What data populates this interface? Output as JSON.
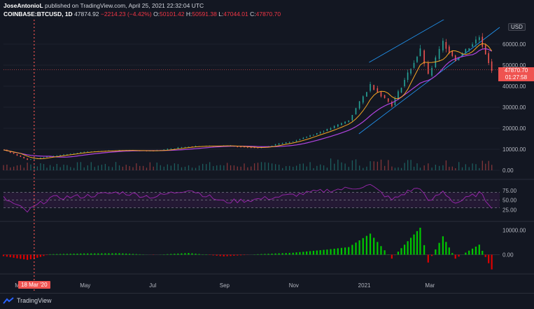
{
  "header": {
    "author": "JoseAntonioL",
    "published": "published on TradingView.com, April 25, 2021 22:32:04 UTC",
    "symbol": "COINBASE:BTCUSD, 1D",
    "last": "47874.92",
    "change": "−2214.23 (−4.42%)",
    "o_label": "O:",
    "o_val": "50101.42",
    "h_label": "H:",
    "h_val": "50591.38",
    "l_label": "L:",
    "l_val": "47044.01",
    "c_label": "C:",
    "c_val": "47870.70"
  },
  "currency": "USD",
  "price_tag": {
    "price": "47870.70",
    "countdown": "01:27:58"
  },
  "date_tag": "18 Mar '20",
  "footer": {
    "brand": "TradingView"
  },
  "colors": {
    "bg": "#131722",
    "up": "#26a69a",
    "down": "#ef5350",
    "ma_fast": "#f5a623",
    "ma_slow": "#b044e0",
    "rsi": "#9c27b0",
    "channel": "#2196f3",
    "hist_up": "#00c800",
    "hist_down": "#e00000"
  },
  "chart_data": {
    "type": "line",
    "x": [
      "2020-02-20",
      "2020-03-12",
      "2020-03-18",
      "2020-04-01",
      "2020-05-01",
      "2020-06-01",
      "2020-07-01",
      "2020-08-01",
      "2020-09-01",
      "2020-10-01",
      "2020-11-01",
      "2020-12-01",
      "2020-12-20",
      "2021-01-08",
      "2021-01-27",
      "2021-02-10",
      "2021-02-21",
      "2021-02-28",
      "2021-03-13",
      "2021-03-24",
      "2021-04-14",
      "2021-04-25"
    ],
    "series": [
      {
        "values": [
          9700,
          5000,
          5400,
          6600,
          8800,
          9500,
          9200,
          11300,
          11700,
          10600,
          13800,
          19300,
          23800,
          40600,
          31000,
          46000,
          57000,
          45000,
          61000,
          52500,
          63500,
          47870
        ]
      }
    ],
    "price_axis": {
      "ticks": [
        "60000.00",
        "50000.00",
        "40000.00",
        "30000.00",
        "20000.00",
        "10000.00",
        "0.00"
      ],
      "ylim": [
        0,
        70000
      ]
    },
    "rsi": {
      "ticks": [
        "75.00",
        "50.00",
        "25.00"
      ],
      "ylim": [
        0,
        100
      ],
      "values": [
        55,
        20,
        32,
        55,
        60,
        70,
        58,
        78,
        45,
        52,
        63,
        75,
        80,
        88,
        50,
        72,
        83,
        44,
        72,
        42,
        68,
        34
      ]
    },
    "histogram": {
      "ticks": [
        "10000.00",
        "0.00"
      ],
      "ylim": [
        -7000,
        13000
      ],
      "values": [
        -600,
        -2100,
        -1600,
        200,
        500,
        600,
        -100,
        700,
        -700,
        200,
        800,
        2100,
        3100,
        8600,
        -1600,
        5500,
        11000,
        -3200,
        7500,
        -1600,
        4100,
        -6000
      ]
    },
    "x_labels": [
      "Mar",
      "May",
      "Jul",
      "Sep",
      "Nov",
      "2021",
      "Mar"
    ]
  }
}
